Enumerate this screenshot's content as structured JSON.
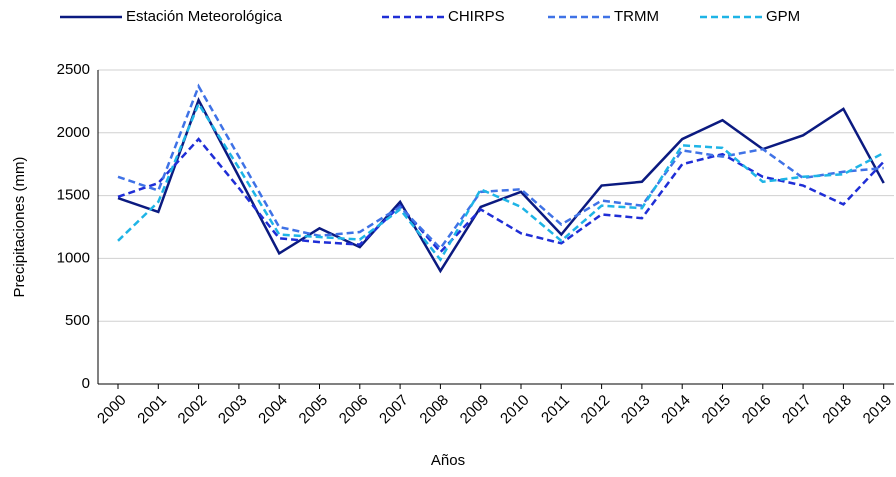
{
  "chart_data": {
    "type": "line",
    "x_label": "Años",
    "y_label": "Precipitaciones (mm)",
    "categories": [
      "2000",
      "2001",
      "2002",
      "2003",
      "2004",
      "2005",
      "2006",
      "2007",
      "2008",
      "2009",
      "2010",
      "2011",
      "2012",
      "2013",
      "2014",
      "2015",
      "2016",
      "2017",
      "2018",
      "2019"
    ],
    "series": [
      {
        "name": "Estación Meteorológica",
        "color": "#0b1a80",
        "dash": "solid",
        "values": [
          1480,
          1370,
          2260,
          1650,
          1040,
          1240,
          1090,
          1450,
          900,
          1410,
          1530,
          1190,
          1580,
          1610,
          1950,
          2100,
          1870,
          1980,
          2190,
          1600
        ]
      },
      {
        "name": "CHIRPS",
        "color": "#1f2ed6",
        "dash": "dashed",
        "values": [
          1490,
          1600,
          1950,
          1560,
          1160,
          1130,
          1110,
          1420,
          1050,
          1390,
          1200,
          1120,
          1350,
          1320,
          1750,
          1830,
          1650,
          1580,
          1430,
          1770
        ]
      },
      {
        "name": "TRMM",
        "color": "#3f72e6",
        "dash": "dashed",
        "values": [
          1650,
          1540,
          2370,
          1810,
          1250,
          1180,
          1210,
          1410,
          1080,
          1530,
          1550,
          1270,
          1460,
          1420,
          1860,
          1810,
          1870,
          1640,
          1690,
          1720
        ]
      },
      {
        "name": "GPM",
        "color": "#1eb4e6",
        "dash": "dashed",
        "values": [
          1140,
          1450,
          2230,
          1720,
          1190,
          1170,
          1150,
          1390,
          990,
          1550,
          1410,
          1140,
          1420,
          1400,
          1900,
          1880,
          1610,
          1650,
          1670,
          1840
        ]
      }
    ],
    "ylim": [
      0,
      2500
    ],
    "yticks": [
      0,
      500,
      1000,
      1500,
      2000,
      2500
    ],
    "grid": true,
    "legend": "top"
  }
}
